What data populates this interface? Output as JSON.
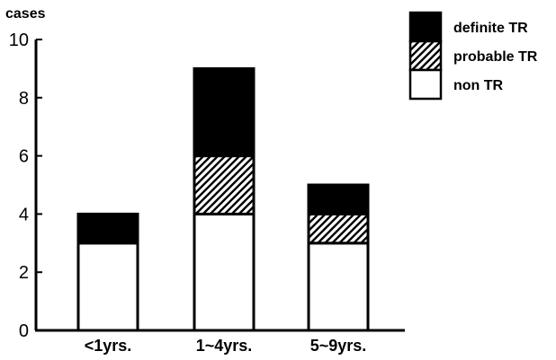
{
  "chart_data": {
    "type": "bar",
    "stacked": true,
    "ylabel": "cases",
    "xlabel": "",
    "ylim": [
      0,
      10
    ],
    "yticks": [
      0,
      2,
      4,
      6,
      8,
      10
    ],
    "categories": [
      "<1yrs.",
      "1~4yrs.",
      "5~9yrs."
    ],
    "series": [
      {
        "name": "non TR",
        "values": [
          3,
          4,
          3
        ],
        "fill": "white"
      },
      {
        "name": "probable TR",
        "values": [
          0,
          2,
          1
        ],
        "fill": "hatch"
      },
      {
        "name": "definite TR",
        "values": [
          1,
          3,
          1
        ],
        "fill": "black"
      }
    ],
    "legend_position": "top-right",
    "legend_order": [
      "definite TR",
      "probable TR",
      "non TR"
    ]
  }
}
